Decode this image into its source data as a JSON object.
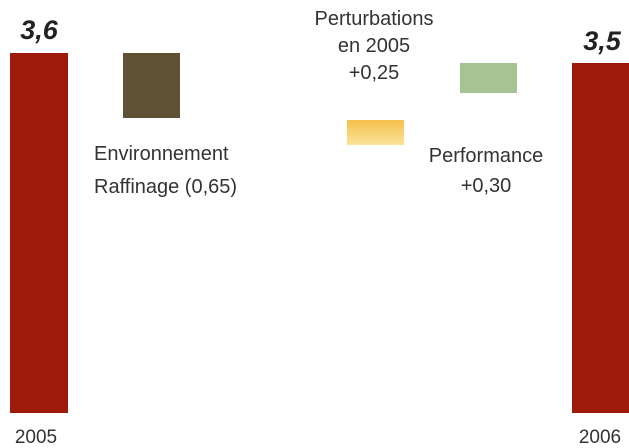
{
  "chart_data": {
    "type": "bar",
    "subtype": "waterfall",
    "categories": [
      "2005",
      "Environnement Raffinage",
      "Perturbations en 2005",
      "Performance",
      "2006"
    ],
    "bars": [
      {
        "kind": "total",
        "category": "2005",
        "value": 3.6,
        "value_label": "3,6",
        "color": "#9e1b0c"
      },
      {
        "kind": "delta",
        "category": "Environnement Raffinage",
        "value": -0.65,
        "label_lines": [
          "Environnement",
          "Raffinage (0,65)"
        ],
        "color": "#5f5234"
      },
      {
        "kind": "delta",
        "category": "Perturbations en 2005",
        "value": 0.25,
        "label_lines": [
          "Perturbations",
          "en 2005",
          "+0,25"
        ],
        "color": "#f6cf5e"
      },
      {
        "kind": "delta",
        "category": "Performance",
        "value": 0.3,
        "label_lines": [
          "Performance",
          "+0,30"
        ],
        "color": "#a6c392"
      },
      {
        "kind": "total",
        "category": "2006",
        "value": 3.5,
        "value_label": "3,5",
        "color": "#9e1b0c"
      }
    ],
    "xlabels": [
      "2005",
      "2006"
    ],
    "grid": false,
    "legend": "none"
  }
}
